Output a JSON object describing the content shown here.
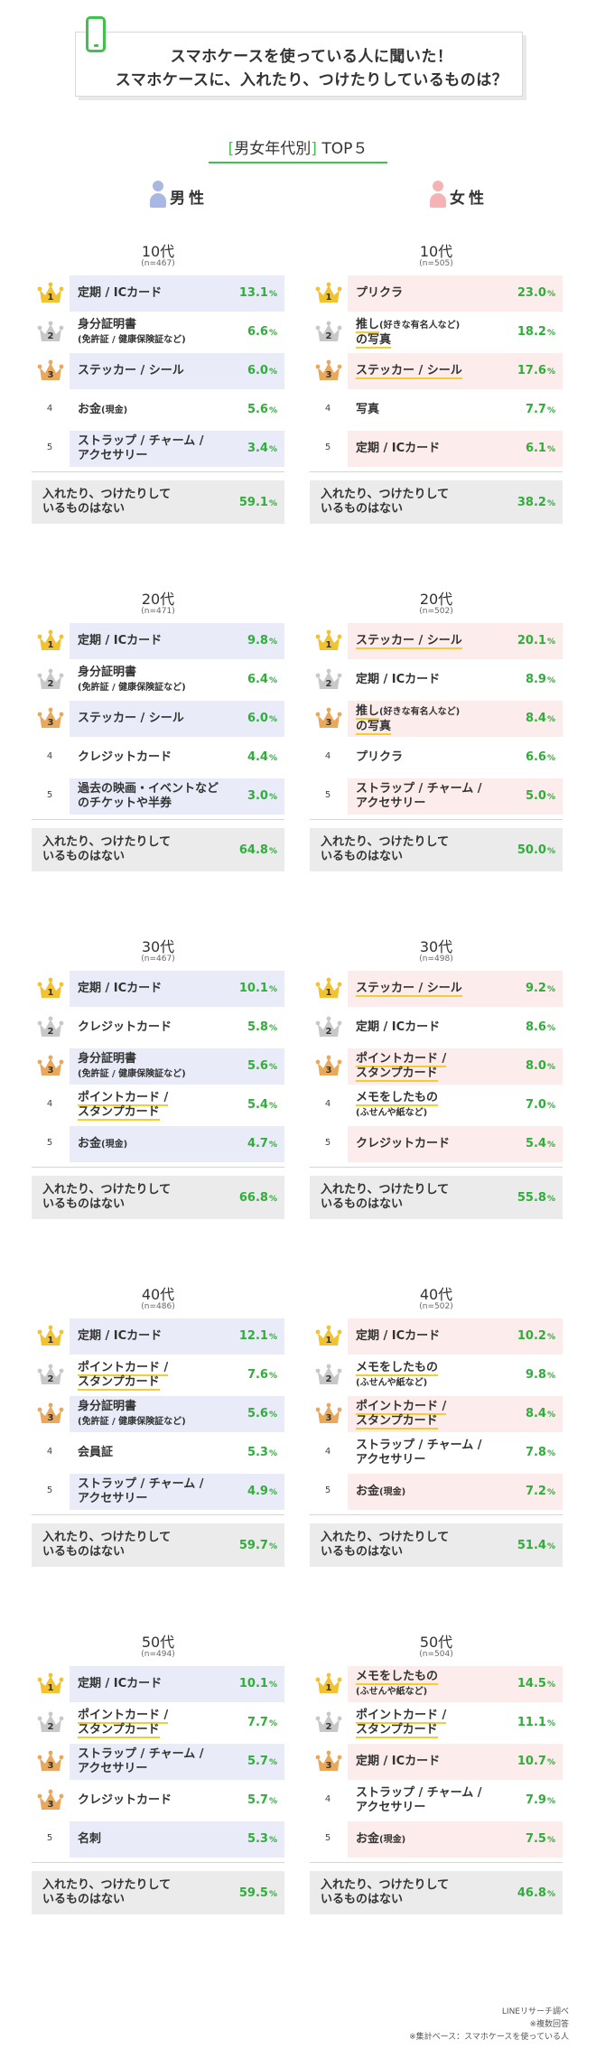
{
  "header": {
    "line1": "スマホケースを使っている人に聞いた！",
    "line2": "スマホケースに、入れたり、つけたりしているものは？"
  },
  "section_title": {
    "bracket_open": "[",
    "text": "男女年代別",
    "bracket_close": "]",
    "suffix": "TOP５"
  },
  "genders": {
    "male": "男性",
    "female": "女性"
  },
  "unit": "%",
  "colors": {
    "accent_green": "#3fc24c",
    "male_bar": "#e9ecf8",
    "female_bar": "#fdecec",
    "gold": "#f2c230",
    "silver": "#c8c8c8",
    "bronze": "#e9a85c",
    "underline_yellow": "#f5cc33"
  },
  "chart_data": {
    "type": "table",
    "title": "スマホケースに、入れたり、つけたりしているものは？",
    "groups": [
      {
        "age": "10代",
        "male": {
          "n": "(n=467)",
          "items": [
            {
              "rank": "1",
              "label": "定期 / ICカード",
              "sub": "",
              "value": "13.1"
            },
            {
              "rank": "2",
              "label": "身分証明書",
              "sub": "(免許証 / 健康保険証など)",
              "value": "6.6"
            },
            {
              "rank": "3",
              "label": "ステッカー / シール",
              "sub": "",
              "value": "6.0"
            },
            {
              "rank": "4",
              "label": "お金",
              "sub": "(現金)",
              "value": "5.6"
            },
            {
              "rank": "5",
              "label": "ストラップ / チャーム /",
              "sub": "アクセサリー",
              "value": "3.4"
            }
          ],
          "none": {
            "label1": "入れたり、つけたりして",
            "label2": "いるものはない",
            "value": "59.1"
          }
        },
        "female": {
          "n": "(n=505)",
          "items": [
            {
              "rank": "1",
              "label": "プリクラ",
              "sub": "",
              "value": "23.0"
            },
            {
              "rank": "2",
              "label": "推し",
              "sub": "(好きな有名人など)",
              "label2": "の写真",
              "value": "18.2"
            },
            {
              "rank": "3",
              "label": "ステッカー / シール",
              "sub": "",
              "value": "17.6"
            },
            {
              "rank": "4",
              "label": "写真",
              "sub": "",
              "value": "7.7"
            },
            {
              "rank": "5",
              "label": "定期 / ICカード",
              "sub": "",
              "value": "6.1"
            }
          ],
          "none": {
            "label1": "入れたり、つけたりして",
            "label2": "いるものはない",
            "value": "38.2"
          }
        }
      },
      {
        "age": "20代",
        "male": {
          "n": "(n=471)",
          "items": [
            {
              "rank": "1",
              "label": "定期 / ICカード",
              "sub": "",
              "value": "9.8"
            },
            {
              "rank": "2",
              "label": "身分証明書",
              "sub": "(免許証 / 健康保険証など)",
              "value": "6.4"
            },
            {
              "rank": "3",
              "label": "ステッカー / シール",
              "sub": "",
              "value": "6.0"
            },
            {
              "rank": "4",
              "label": "クレジットカード",
              "sub": "",
              "value": "4.4"
            },
            {
              "rank": "5",
              "label": "過去の映画・イベントなど",
              "sub": "のチケットや半券",
              "value": "3.0"
            }
          ],
          "none": {
            "label1": "入れたり、つけたりして",
            "label2": "いるものはない",
            "value": "64.8"
          }
        },
        "female": {
          "n": "(n=502)",
          "items": [
            {
              "rank": "1",
              "label": "ステッカー / シール",
              "sub": "",
              "value": "20.1"
            },
            {
              "rank": "2",
              "label": "定期 / ICカード",
              "sub": "",
              "value": "8.9"
            },
            {
              "rank": "3",
              "label": "推し",
              "sub": "(好きな有名人など)",
              "label2": "の写真",
              "value": "8.4"
            },
            {
              "rank": "4",
              "label": "プリクラ",
              "sub": "",
              "value": "6.6"
            },
            {
              "rank": "5",
              "label": "ストラップ / チャーム /",
              "sub": "アクセサリー",
              "value": "5.0"
            }
          ],
          "none": {
            "label1": "入れたり、つけたりして",
            "label2": "いるものはない",
            "value": "50.0"
          }
        }
      },
      {
        "age": "30代",
        "male": {
          "n": "(n=467)",
          "items": [
            {
              "rank": "1",
              "label": "定期 / ICカード",
              "sub": "",
              "value": "10.1"
            },
            {
              "rank": "2",
              "label": "クレジットカード",
              "sub": "",
              "value": "5.8"
            },
            {
              "rank": "3",
              "label": "身分証明書",
              "sub": "(免許証 / 健康保険証など)",
              "value": "5.6"
            },
            {
              "rank": "4",
              "label": "ポイントカード /",
              "sub": "スタンプカード",
              "value": "5.4"
            },
            {
              "rank": "5",
              "label": "お金",
              "sub": "(現金)",
              "value": "4.7"
            }
          ],
          "none": {
            "label1": "入れたり、つけたりして",
            "label2": "いるものはない",
            "value": "66.8"
          }
        },
        "female": {
          "n": "(n=498)",
          "items": [
            {
              "rank": "1",
              "label": "ステッカー / シール",
              "sub": "",
              "value": "9.2"
            },
            {
              "rank": "2",
              "label": "定期 / ICカード",
              "sub": "",
              "value": "8.6"
            },
            {
              "rank": "3",
              "label": "ポイントカード /",
              "sub": "スタンプカード",
              "value": "8.0"
            },
            {
              "rank": "4",
              "label": "メモをしたもの",
              "sub": "(ふせんや紙など)",
              "value": "7.0"
            },
            {
              "rank": "5",
              "label": "クレジットカード",
              "sub": "",
              "value": "5.4"
            }
          ],
          "none": {
            "label1": "入れたり、つけたりして",
            "label2": "いるものはない",
            "value": "55.8"
          }
        }
      },
      {
        "age": "40代",
        "male": {
          "n": "(n=486)",
          "items": [
            {
              "rank": "1",
              "label": "定期 / ICカード",
              "sub": "",
              "value": "12.1"
            },
            {
              "rank": "2",
              "label": "ポイントカード /",
              "sub": "スタンプカード",
              "value": "7.6"
            },
            {
              "rank": "3",
              "label": "身分証明書",
              "sub": "(免許証 / 健康保険証など)",
              "value": "5.6"
            },
            {
              "rank": "4",
              "label": "会員証",
              "sub": "",
              "value": "5.3"
            },
            {
              "rank": "5",
              "label": "ストラップ / チャーム /",
              "sub": "アクセサリー",
              "value": "4.9"
            }
          ],
          "none": {
            "label1": "入れたり、つけたりして",
            "label2": "いるものはない",
            "value": "59.7"
          }
        },
        "female": {
          "n": "(n=502)",
          "items": [
            {
              "rank": "1",
              "label": "定期 / ICカード",
              "sub": "",
              "value": "10.2"
            },
            {
              "rank": "2",
              "label": "メモをしたもの",
              "sub": "(ふせんや紙など)",
              "value": "9.8"
            },
            {
              "rank": "3",
              "label": "ポイントカード /",
              "sub": "スタンプカード",
              "value": "8.4"
            },
            {
              "rank": "4",
              "label": "ストラップ / チャーム /",
              "sub": "アクセサリー",
              "value": "7.8"
            },
            {
              "rank": "5",
              "label": "お金",
              "sub": "(現金)",
              "value": "7.2"
            }
          ],
          "none": {
            "label1": "入れたり、つけたりして",
            "label2": "いるものはない",
            "value": "51.4"
          }
        }
      },
      {
        "age": "50代",
        "male": {
          "n": "(n=494)",
          "items": [
            {
              "rank": "1",
              "label": "定期 / ICカード",
              "sub": "",
              "value": "10.1"
            },
            {
              "rank": "2",
              "label": "ポイントカード /",
              "sub": "スタンプカード",
              "value": "7.7"
            },
            {
              "rank": "3",
              "label": "ストラップ / チャーム /",
              "sub": "アクセサリー",
              "value": "5.7"
            },
            {
              "rank": "3",
              "label": "クレジットカード",
              "sub": "",
              "value": "5.7"
            },
            {
              "rank": "5",
              "label": "名刺",
              "sub": "",
              "value": "5.3"
            }
          ],
          "none": {
            "label1": "入れたり、つけたりして",
            "label2": "いるものはない",
            "value": "59.5"
          }
        },
        "female": {
          "n": "(n=504)",
          "items": [
            {
              "rank": "1",
              "label": "メモをしたもの",
              "sub": "(ふせんや紙など)",
              "value": "14.5"
            },
            {
              "rank": "2",
              "label": "ポイントカード /",
              "sub": "スタンプカード",
              "value": "11.1"
            },
            {
              "rank": "3",
              "label": "定期 / ICカード",
              "sub": "",
              "value": "10.7"
            },
            {
              "rank": "4",
              "label": "ストラップ / チャーム /",
              "sub": "アクセサリー",
              "value": "7.9"
            },
            {
              "rank": "5",
              "label": "お金",
              "sub": "(現金)",
              "value": "7.5"
            }
          ],
          "none": {
            "label1": "入れたり、つけたりして",
            "label2": "いるものはない",
            "value": "46.8"
          }
        }
      }
    ]
  },
  "footnotes": {
    "source": "LINEリサーチ調べ",
    "multi": "※複数回答",
    "base": "※集計ベース：スマホケースを使っている人"
  }
}
